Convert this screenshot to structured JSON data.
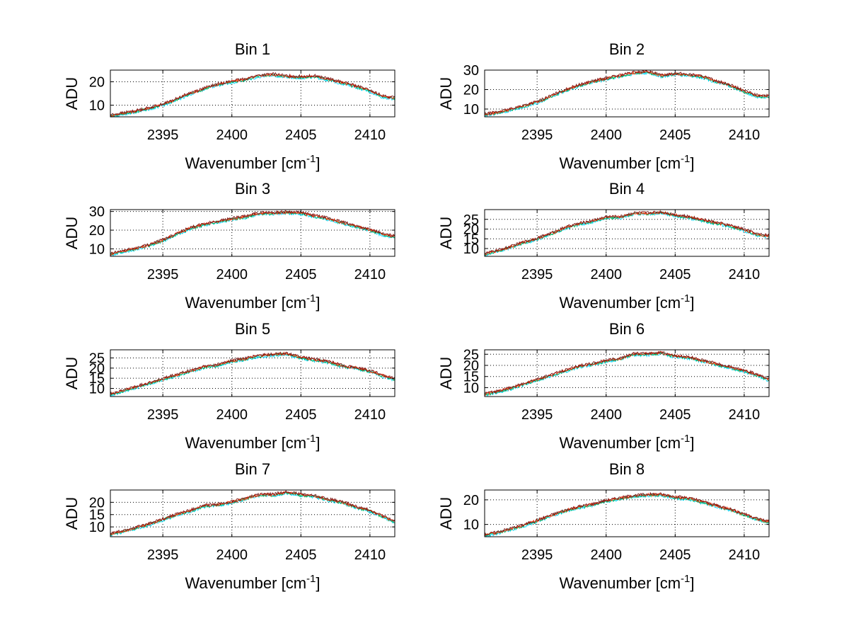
{
  "figure": {
    "background": "#ffffff",
    "line_colors": [
      "#00d8ff",
      "#00b050",
      "#ff2a00",
      "#7a1a1a"
    ]
  },
  "chart_data": [
    {
      "type": "line",
      "title": "Bin 1",
      "xlabel": "Wavenumber [cm",
      "xlabel_sup": "-1",
      "xlabel_end": "]",
      "ylabel": "ADU",
      "xlim": [
        2391.2,
        2411.8
      ],
      "ylim": [
        5,
        25
      ],
      "xticks": [
        2395,
        2400,
        2405,
        2410
      ],
      "yticks": [
        10,
        20
      ],
      "grid": true,
      "x": [
        2391.2,
        2392,
        2393,
        2394,
        2395,
        2396,
        2397,
        2398,
        2399,
        2400,
        2401,
        2402,
        2403,
        2404,
        2405,
        2406,
        2407,
        2408,
        2409,
        2410,
        2411,
        2411.8
      ],
      "series": [
        {
          "values": [
            5.5,
            6.3,
            7.3,
            8.6,
            10.2,
            12.5,
            15.0,
            17.0,
            18.8,
            20.0,
            21.0,
            22.5,
            23.0,
            22.2,
            22.0,
            22.3,
            21.0,
            19.5,
            18.0,
            16.0,
            13.5,
            13.0
          ]
        }
      ]
    },
    {
      "type": "line",
      "title": "Bin 2",
      "xlabel": "Wavenumber [cm",
      "xlabel_sup": "-1",
      "xlabel_end": "]",
      "ylabel": "ADU",
      "xlim": [
        2391.2,
        2411.8
      ],
      "ylim": [
        6,
        30
      ],
      "xticks": [
        2395,
        2400,
        2405,
        2410
      ],
      "yticks": [
        10,
        20,
        30
      ],
      "grid": true,
      "x": [
        2391.2,
        2392,
        2393,
        2394,
        2395,
        2396,
        2397,
        2398,
        2399,
        2400,
        2401,
        2402,
        2403,
        2404,
        2405,
        2406,
        2407,
        2408,
        2409,
        2410,
        2411,
        2411.8
      ],
      "series": [
        {
          "values": [
            7.0,
            8.0,
            9.5,
            11.5,
            13.5,
            16.5,
            19.5,
            22.0,
            24.0,
            25.5,
            27.0,
            28.5,
            29.0,
            27.0,
            28.0,
            27.5,
            26.5,
            24.0,
            22.0,
            19.0,
            16.5,
            16.5
          ]
        }
      ]
    },
    {
      "type": "line",
      "title": "Bin 3",
      "xlabel": "Wavenumber [cm",
      "xlabel_sup": "-1",
      "xlabel_end": "]",
      "ylabel": "ADU",
      "xlim": [
        2391.2,
        2411.8
      ],
      "ylim": [
        6,
        31
      ],
      "xticks": [
        2395,
        2400,
        2405,
        2410
      ],
      "yticks": [
        10,
        20,
        30
      ],
      "grid": true,
      "x": [
        2391.2,
        2392,
        2393,
        2394,
        2395,
        2396,
        2397,
        2398,
        2399,
        2400,
        2401,
        2402,
        2403,
        2404,
        2405,
        2406,
        2407,
        2408,
        2409,
        2410,
        2411,
        2411.8
      ],
      "series": [
        {
          "values": [
            7.0,
            8.5,
            10.0,
            12.0,
            14.5,
            18.0,
            21.0,
            23.0,
            24.5,
            26.0,
            27.0,
            29.0,
            29.0,
            29.5,
            29.0,
            27.5,
            26.0,
            24.0,
            22.0,
            20.0,
            17.5,
            16.5
          ]
        }
      ]
    },
    {
      "type": "line",
      "title": "Bin 4",
      "xlabel": "Wavenumber [cm",
      "xlabel_sup": "-1",
      "xlabel_end": "]",
      "ylabel": "ADU",
      "xlim": [
        2391.2,
        2411.8
      ],
      "ylim": [
        6,
        30
      ],
      "xticks": [
        2395,
        2400,
        2405,
        2410
      ],
      "yticks": [
        10,
        15,
        20,
        25
      ],
      "grid": true,
      "x": [
        2391.2,
        2392,
        2393,
        2394,
        2395,
        2396,
        2397,
        2398,
        2399,
        2400,
        2401,
        2402,
        2403,
        2404,
        2405,
        2406,
        2407,
        2408,
        2409,
        2410,
        2411,
        2411.8
      ],
      "series": [
        {
          "values": [
            7.0,
            8.5,
            10.5,
            13.0,
            15.0,
            17.5,
            20.5,
            22.5,
            24.0,
            26.0,
            26.0,
            28.0,
            28.0,
            28.5,
            27.0,
            26.0,
            24.5,
            23.0,
            21.5,
            19.5,
            17.0,
            16.5
          ]
        }
      ]
    },
    {
      "type": "line",
      "title": "Bin 5",
      "xlabel": "Wavenumber [cm",
      "xlabel_sup": "-1",
      "xlabel_end": "]",
      "ylabel": "ADU",
      "xlim": [
        2391.2,
        2411.8
      ],
      "ylim": [
        6,
        29
      ],
      "xticks": [
        2395,
        2400,
        2405,
        2410
      ],
      "yticks": [
        10,
        15,
        20,
        25
      ],
      "grid": true,
      "x": [
        2391.2,
        2392,
        2393,
        2394,
        2395,
        2396,
        2397,
        2398,
        2399,
        2400,
        2401,
        2402,
        2403,
        2404,
        2405,
        2406,
        2407,
        2408,
        2409,
        2410,
        2411,
        2411.8
      ],
      "series": [
        {
          "values": [
            7.0,
            8.5,
            10.5,
            12.5,
            14.5,
            16.5,
            18.5,
            20.5,
            21.5,
            23.5,
            24.5,
            26.0,
            26.5,
            27.0,
            25.0,
            24.0,
            23.0,
            21.0,
            20.0,
            18.5,
            16.0,
            14.5
          ]
        }
      ]
    },
    {
      "type": "line",
      "title": "Bin 6",
      "xlabel": "Wavenumber [cm",
      "xlabel_sup": "-1",
      "xlabel_end": "]",
      "ylabel": "ADU",
      "xlim": [
        2391.2,
        2411.8
      ],
      "ylim": [
        6,
        27
      ],
      "xticks": [
        2395,
        2400,
        2405,
        2410
      ],
      "yticks": [
        10,
        15,
        20,
        25
      ],
      "grid": true,
      "x": [
        2391.2,
        2392,
        2393,
        2394,
        2395,
        2396,
        2397,
        2398,
        2399,
        2400,
        2401,
        2402,
        2403,
        2404,
        2405,
        2406,
        2407,
        2408,
        2409,
        2410,
        2411,
        2411.8
      ],
      "series": [
        {
          "values": [
            7.0,
            8.0,
            9.5,
            11.5,
            13.5,
            15.5,
            17.5,
            19.5,
            20.5,
            22.0,
            23.0,
            25.0,
            25.0,
            25.5,
            24.0,
            23.5,
            22.0,
            20.5,
            19.0,
            17.5,
            15.5,
            13.5
          ]
        }
      ]
    },
    {
      "type": "line",
      "title": "Bin 7",
      "xlabel": "Wavenumber [cm",
      "xlabel_sup": "-1",
      "xlabel_end": "]",
      "ylabel": "ADU",
      "xlim": [
        2391.2,
        2411.8
      ],
      "ylim": [
        6,
        25
      ],
      "xticks": [
        2395,
        2400,
        2405,
        2410
      ],
      "yticks": [
        10,
        15,
        20
      ],
      "grid": true,
      "x": [
        2391.2,
        2392,
        2393,
        2394,
        2395,
        2396,
        2397,
        2398,
        2399,
        2400,
        2401,
        2402,
        2403,
        2404,
        2405,
        2406,
        2407,
        2408,
        2409,
        2410,
        2411,
        2411.8
      ],
      "series": [
        {
          "values": [
            7.0,
            8.0,
            9.5,
            11.0,
            13.0,
            15.0,
            16.5,
            18.5,
            19.0,
            20.0,
            21.5,
            23.0,
            23.0,
            24.0,
            23.0,
            22.5,
            21.0,
            20.0,
            18.0,
            16.5,
            14.0,
            12.0
          ]
        }
      ]
    },
    {
      "type": "line",
      "title": "Bin 8",
      "xlabel": "Wavenumber [cm",
      "xlabel_sup": "-1",
      "xlabel_end": "]",
      "ylabel": "ADU",
      "xlim": [
        2391.2,
        2411.8
      ],
      "ylim": [
        5,
        24
      ],
      "xticks": [
        2395,
        2400,
        2405,
        2410
      ],
      "yticks": [
        10,
        20
      ],
      "grid": true,
      "x": [
        2391.2,
        2392,
        2393,
        2394,
        2395,
        2396,
        2397,
        2398,
        2399,
        2400,
        2401,
        2402,
        2403,
        2404,
        2405,
        2406,
        2407,
        2408,
        2409,
        2410,
        2411,
        2411.8
      ],
      "series": [
        {
          "values": [
            5.5,
            6.5,
            8.0,
            9.5,
            11.5,
            13.5,
            15.5,
            17.0,
            18.0,
            19.5,
            20.5,
            21.5,
            22.0,
            22.0,
            21.0,
            20.5,
            19.0,
            17.5,
            16.0,
            14.0,
            12.0,
            11.0
          ]
        }
      ]
    }
  ]
}
